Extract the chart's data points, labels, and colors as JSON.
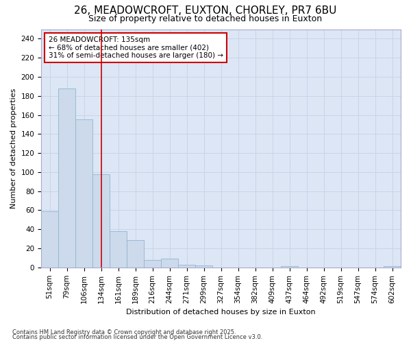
{
  "title_line1": "26, MEADOWCROFT, EUXTON, CHORLEY, PR7 6BU",
  "title_line2": "Size of property relative to detached houses in Euxton",
  "xlabel": "Distribution of detached houses by size in Euxton",
  "ylabel": "Number of detached properties",
  "bar_labels": [
    "51sqm",
    "79sqm",
    "106sqm",
    "134sqm",
    "161sqm",
    "189sqm",
    "216sqm",
    "244sqm",
    "271sqm",
    "299sqm",
    "327sqm",
    "354sqm",
    "382sqm",
    "409sqm",
    "437sqm",
    "464sqm",
    "492sqm",
    "519sqm",
    "547sqm",
    "574sqm",
    "602sqm"
  ],
  "bar_values": [
    59,
    188,
    155,
    98,
    38,
    29,
    8,
    9,
    3,
    2,
    0,
    0,
    0,
    0,
    1,
    0,
    0,
    0,
    0,
    0,
    1
  ],
  "bar_color": "#ccdaeb",
  "bar_edgecolor": "#92b4d0",
  "grid_color": "#c8d4e8",
  "plot_bg_color": "#dce6f5",
  "figure_bg_color": "#ffffff",
  "red_line_x": 3.0,
  "annotation_text": "26 MEADOWCROFT: 135sqm\n← 68% of detached houses are smaller (402)\n31% of semi-detached houses are larger (180) →",
  "annotation_box_facecolor": "#ffffff",
  "annotation_box_edgecolor": "#cc0000",
  "ylim": [
    0,
    250
  ],
  "yticks": [
    0,
    20,
    40,
    60,
    80,
    100,
    120,
    140,
    160,
    180,
    200,
    220,
    240
  ],
  "footnote1": "Contains HM Land Registry data © Crown copyright and database right 2025.",
  "footnote2": "Contains public sector information licensed under the Open Government Licence v3.0.",
  "title1_fontsize": 11,
  "title2_fontsize": 9,
  "axis_label_fontsize": 8,
  "tick_fontsize": 7.5,
  "annot_fontsize": 7.5,
  "footnote_fontsize": 6
}
